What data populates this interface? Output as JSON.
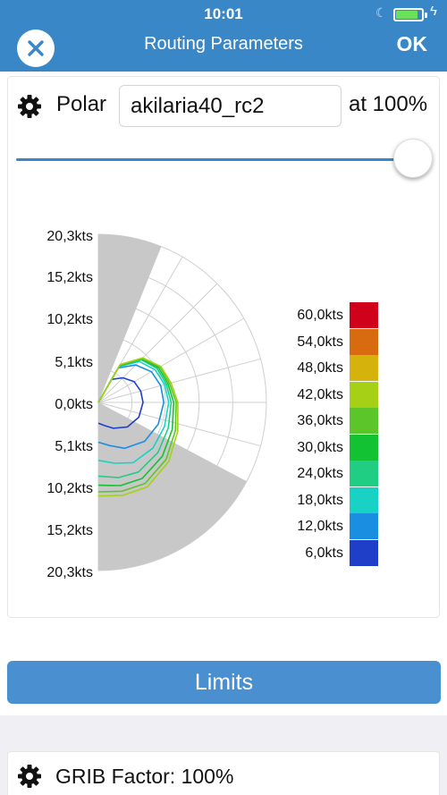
{
  "status": {
    "time": "10:01"
  },
  "header": {
    "title": "Routing Parameters",
    "ok_label": "OK"
  },
  "polar": {
    "label": "Polar",
    "value": "akilaria40_rc2",
    "percent_label": "at 100%",
    "slider_percent": 100
  },
  "chart_data": {
    "type": "polar",
    "radial_tick_labels": [
      "20,3kts",
      "15,2kts",
      "10,2kts",
      "5,1kts",
      "0,0kts",
      "5,1kts",
      "10,2kts",
      "15,2kts",
      "20,3kts"
    ],
    "radial_max": 20.3,
    "legend": [
      {
        "label": "60,0kts",
        "color": "#d0021b"
      },
      {
        "label": "54,0kts",
        "color": "#d86a0f"
      },
      {
        "label": "48,0kts",
        "color": "#d6b20c"
      },
      {
        "label": "42,0kts",
        "color": "#a6d016"
      },
      {
        "label": "36,0kts",
        "color": "#5cc52a"
      },
      {
        "label": "30,0kts",
        "color": "#13c233"
      },
      {
        "label": "24,0kts",
        "color": "#1fce83"
      },
      {
        "label": "18,0kts",
        "color": "#18d2c6"
      },
      {
        "label": "12,0kts",
        "color": "#1a8ee0"
      },
      {
        "label": "6,0kts",
        "color": "#1f3fc9"
      }
    ],
    "series": [
      {
        "name": "6,0kts",
        "color": "#1f3fc9",
        "angles": [
          30,
          45,
          60,
          75,
          90,
          110,
          130,
          150,
          165,
          180
        ],
        "speeds": [
          3.2,
          4.2,
          5.0,
          5.3,
          5.4,
          5.2,
          4.6,
          3.6,
          2.9,
          2.5
        ]
      },
      {
        "name": "12,0kts",
        "color": "#1a8ee0",
        "angles": [
          30,
          45,
          60,
          75,
          90,
          110,
          130,
          150,
          165,
          180
        ],
        "speeds": [
          4.8,
          6.4,
          7.4,
          7.8,
          7.9,
          7.7,
          7.3,
          6.4,
          5.4,
          4.8
        ]
      },
      {
        "name": "18,0kts",
        "color": "#18d2c6",
        "angles": [
          30,
          45,
          60,
          75,
          90,
          110,
          130,
          150,
          165,
          180
        ],
        "speeds": [
          5.0,
          7.0,
          7.9,
          8.3,
          8.5,
          8.5,
          8.6,
          8.4,
          7.6,
          7.0
        ]
      },
      {
        "name": "24,0kts",
        "color": "#1fce83",
        "angles": [
          30,
          45,
          60,
          75,
          90,
          110,
          130,
          150,
          165,
          180
        ],
        "speeds": [
          5.0,
          7.3,
          8.2,
          8.5,
          8.8,
          9.0,
          9.4,
          9.7,
          9.4,
          8.9
        ]
      },
      {
        "name": "30,0kts",
        "color": "#13c233",
        "angles": [
          30,
          45,
          60,
          75,
          90,
          110,
          130,
          150,
          165,
          180
        ],
        "speeds": [
          5.1,
          7.4,
          8.4,
          8.7,
          9.1,
          9.5,
          10.1,
          10.6,
          10.4,
          10.0
        ]
      },
      {
        "name": "36,0kts",
        "color": "#5cc52a",
        "angles": [
          30,
          45,
          60,
          75,
          90,
          110,
          130,
          150,
          165,
          180
        ],
        "speeds": [
          5.2,
          7.5,
          8.6,
          8.9,
          9.4,
          9.9,
          10.7,
          11.3,
          11.1,
          10.8
        ]
      },
      {
        "name": "42,0kts",
        "color": "#a6d016",
        "angles": [
          30,
          45,
          60,
          75,
          90,
          110,
          130,
          150,
          165,
          180
        ],
        "speeds": [
          5.3,
          7.6,
          8.7,
          9.1,
          9.6,
          10.2,
          11.1,
          11.8,
          11.6,
          11.3
        ]
      }
    ]
  },
  "limits": {
    "label": "Limits"
  },
  "grib": {
    "label": "GRIB Factor: 100%"
  }
}
